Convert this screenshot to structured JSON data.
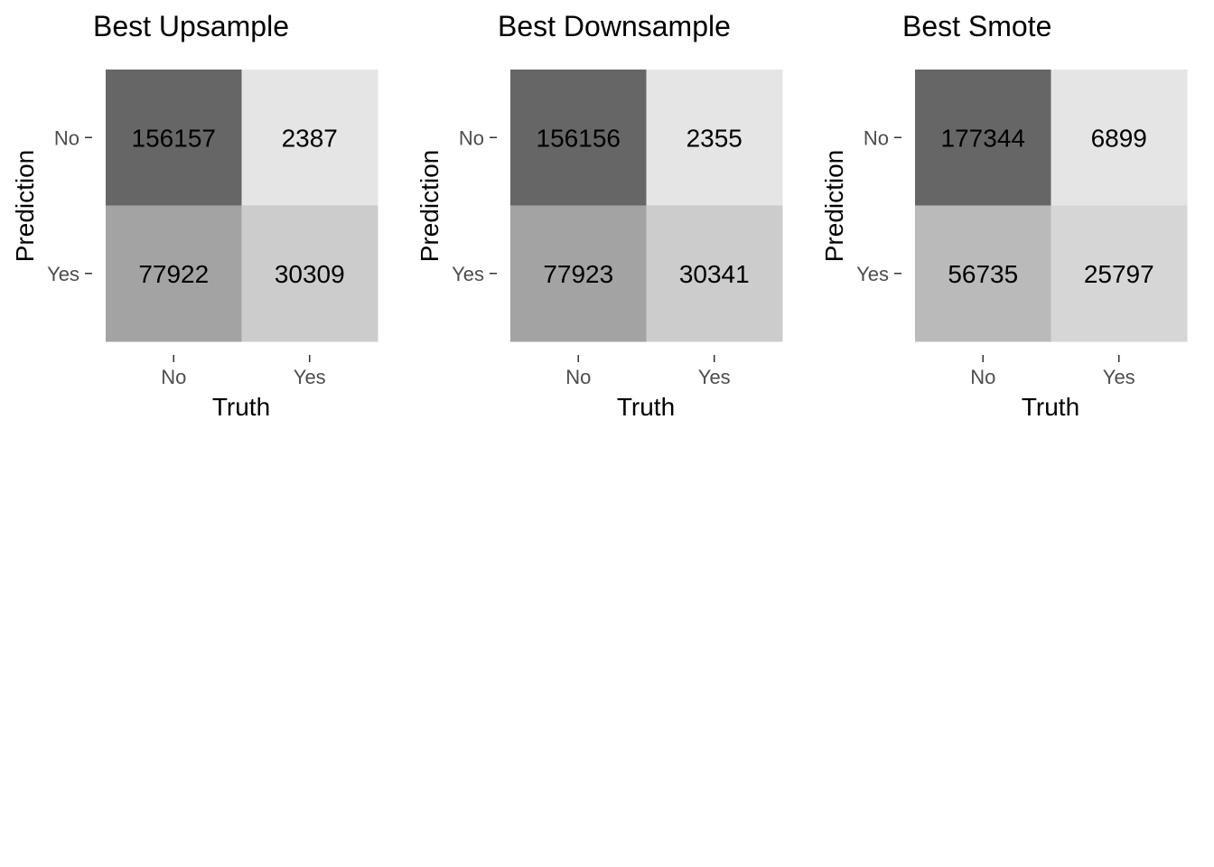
{
  "chart_data": [
    {
      "type": "heatmap",
      "title": "Best Upsample",
      "xlabel": "Truth",
      "ylabel": "Prediction",
      "x_categories": [
        "No",
        "Yes"
      ],
      "y_categories": [
        "No",
        "Yes"
      ],
      "cells": [
        {
          "truth": "No",
          "prediction": "No",
          "value": 156157,
          "fill": "#666666"
        },
        {
          "truth": "Yes",
          "prediction": "No",
          "value": 2387,
          "fill": "#e5e5e5"
        },
        {
          "truth": "No",
          "prediction": "Yes",
          "value": 77922,
          "fill": "#a3a3a3"
        },
        {
          "truth": "Yes",
          "prediction": "Yes",
          "value": 30309,
          "fill": "#cccccc"
        }
      ]
    },
    {
      "type": "heatmap",
      "title": "Best Downsample",
      "xlabel": "Truth",
      "ylabel": "Prediction",
      "x_categories": [
        "No",
        "Yes"
      ],
      "y_categories": [
        "No",
        "Yes"
      ],
      "cells": [
        {
          "truth": "No",
          "prediction": "No",
          "value": 156156,
          "fill": "#666666"
        },
        {
          "truth": "Yes",
          "prediction": "No",
          "value": 2355,
          "fill": "#e5e5e5"
        },
        {
          "truth": "No",
          "prediction": "Yes",
          "value": 77923,
          "fill": "#a3a3a3"
        },
        {
          "truth": "Yes",
          "prediction": "Yes",
          "value": 30341,
          "fill": "#cccccc"
        }
      ]
    },
    {
      "type": "heatmap",
      "title": "Best Smote",
      "xlabel": "Truth",
      "ylabel": "Prediction",
      "x_categories": [
        "No",
        "Yes"
      ],
      "y_categories": [
        "No",
        "Yes"
      ],
      "cells": [
        {
          "truth": "No",
          "prediction": "No",
          "value": 177344,
          "fill": "#666666"
        },
        {
          "truth": "Yes",
          "prediction": "No",
          "value": 6899,
          "fill": "#e5e5e5"
        },
        {
          "truth": "No",
          "prediction": "Yes",
          "value": 56735,
          "fill": "#bababa"
        },
        {
          "truth": "Yes",
          "prediction": "Yes",
          "value": 25797,
          "fill": "#d6d6d6"
        }
      ]
    }
  ]
}
